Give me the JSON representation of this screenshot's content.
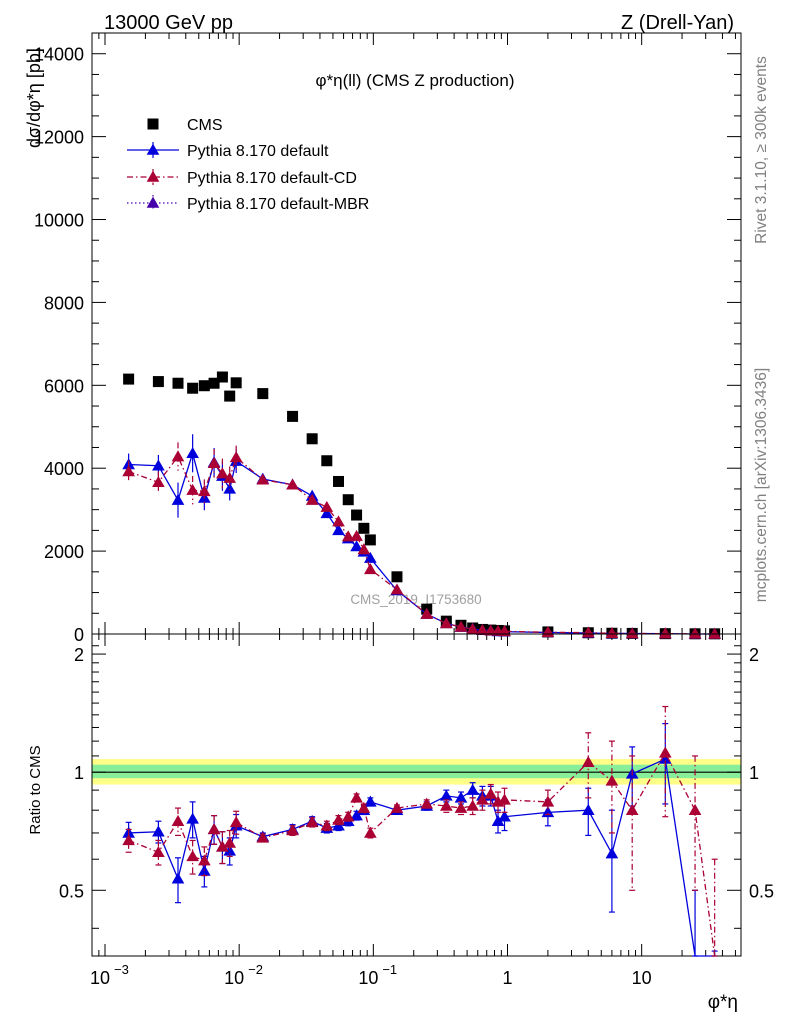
{
  "header": {
    "left": "13000 GeV pp",
    "right": "Z (Drell-Yan)"
  },
  "side_text": {
    "rivet": "Rivet 3.1.10, ≥ 300k events",
    "source": "mcplots.cern.ch [arXiv:1306.3436]"
  },
  "watermark": "CMS_2019_I1753680",
  "chart_data": {
    "type": "scatter",
    "title": "φ*η(ll) (CMS Z production)",
    "xscale": "log",
    "xlim": [
      0.0008,
      55
    ],
    "x_ticks": [
      {
        "value": 0.001,
        "base": "10",
        "exp": "−3"
      },
      {
        "value": 0.01,
        "base": "10",
        "exp": "−2"
      },
      {
        "value": 0.1,
        "base": "10",
        "exp": "−1"
      },
      {
        "value": 1,
        "base": "1",
        "exp": ""
      },
      {
        "value": 10,
        "base": "10",
        "exp": ""
      }
    ],
    "xlabel": "φ*η",
    "ylabel": "dσ/dφ*η [pb]",
    "ylim": [
      0,
      14500
    ],
    "y_ticks": [
      0,
      2000,
      4000,
      6000,
      8000,
      10000,
      12000,
      14000
    ],
    "ratio_label": "Ratio to CMS",
    "ratio_ylim": [
      0.34,
      2.25
    ],
    "ratio_ticks": [
      0.5,
      1,
      2
    ],
    "legend_position": "top-left",
    "x": [
      0.0015,
      0.0025,
      0.0035,
      0.0045,
      0.0055,
      0.0065,
      0.0075,
      0.0085,
      0.0095,
      0.015,
      0.025,
      0.035,
      0.045,
      0.055,
      0.065,
      0.075,
      0.085,
      0.095,
      0.15,
      0.25,
      0.35,
      0.45,
      0.55,
      0.65,
      0.75,
      0.85,
      0.95,
      2,
      4,
      6,
      8.5,
      15,
      25,
      35
    ],
    "series": [
      {
        "name": "CMS",
        "color": "#000000",
        "marker": "square",
        "values": [
          6150,
          6090,
          6050,
          5930,
          5990,
          6050,
          6200,
          5740,
          6060,
          5800,
          5250,
          4710,
          4180,
          3680,
          3240,
          2870,
          2550,
          2270,
          1380,
          600,
          310,
          210,
          145,
          110,
          95,
          85,
          75,
          50,
          30,
          18,
          14,
          8,
          5,
          4
        ],
        "errors": [
          0,
          0,
          0,
          0,
          0,
          0,
          0,
          0,
          0,
          0,
          0,
          0,
          0,
          0,
          0,
          0,
          0,
          0,
          0,
          0,
          0,
          0,
          0,
          0,
          0,
          0,
          0,
          0,
          0,
          0,
          0,
          0,
          0,
          0
        ]
      },
      {
        "name": "Pythia 8.170 default",
        "color": "#0000dd",
        "marker": "triangle",
        "line": "solid",
        "values": [
          4090,
          4060,
          3230,
          4360,
          3280,
          4140,
          3810,
          3500,
          4170,
          3740,
          3600,
          3330,
          2910,
          2500,
          2300,
          2110,
          1980,
          1830,
          1050,
          480,
          255,
          165,
          125,
          90,
          80,
          60,
          56,
          38,
          23,
          11,
          13,
          8.5,
          0.9,
          0.1
        ],
        "ratio": [
          0.7,
          0.705,
          0.535,
          0.76,
          0.56,
          0.715,
          0.645,
          0.63,
          0.73,
          0.685,
          0.715,
          0.75,
          0.72,
          0.73,
          0.75,
          0.775,
          0.8,
          0.84,
          0.8,
          0.82,
          0.87,
          0.86,
          0.9,
          0.87,
          0.87,
          0.75,
          0.77,
          0.79,
          0.8,
          0.62,
          0.99,
          1.08,
          0.3,
          0.15
        ],
        "ratio_err": [
          0.045,
          0.045,
          0.07,
          0.08,
          0.05,
          0.06,
          0.06,
          0.05,
          0.05,
          0.015,
          0.02,
          0.02,
          0.02,
          0.02,
          0.02,
          0.02,
          0.02,
          0.02,
          0.015,
          0.02,
          0.03,
          0.03,
          0.04,
          0.05,
          0.05,
          0.05,
          0.06,
          0.06,
          0.11,
          0.18,
          0.17,
          0.25,
          0.2,
          0.2
        ]
      },
      {
        "name": "Pythia 8.170 default-CD",
        "color": "#aa0033",
        "marker": "triangle",
        "line": "dash-dot",
        "values": [
          3920,
          3660,
          4280,
          3470,
          3440,
          4120,
          3870,
          3760,
          4260,
          3720,
          3600,
          3230,
          3060,
          2710,
          2350,
          2360,
          2040,
          1560,
          1070,
          480,
          252,
          170,
          118,
          92,
          80,
          72,
          64,
          42,
          32,
          17,
          11,
          9,
          4,
          0.1
        ],
        "ratio": [
          0.67,
          0.625,
          0.75,
          0.61,
          0.595,
          0.715,
          0.645,
          0.66,
          0.745,
          0.68,
          0.71,
          0.745,
          0.73,
          0.755,
          0.77,
          0.86,
          0.81,
          0.7,
          0.81,
          0.83,
          0.82,
          0.81,
          0.82,
          0.85,
          0.88,
          0.84,
          0.85,
          0.84,
          1.06,
          0.95,
          0.8,
          1.12,
          0.8,
          0.3
        ],
        "ratio_err": [
          0.045,
          0.045,
          0.06,
          0.06,
          0.05,
          0.06,
          0.06,
          0.05,
          0.05,
          0.015,
          0.02,
          0.02,
          0.02,
          0.02,
          0.02,
          0.02,
          0.02,
          0.02,
          0.015,
          0.02,
          0.03,
          0.03,
          0.04,
          0.05,
          0.05,
          0.05,
          0.06,
          0.06,
          0.2,
          0.25,
          0.3,
          0.35,
          0.3,
          0.3
        ]
      },
      {
        "name": "Pythia 8.170 default-MBR",
        "color": "#4400aa",
        "marker": "triangle",
        "line": "dotted"
      }
    ],
    "band_colors": {
      "yellow": "#ffff88",
      "green": "#88ee99",
      "line": "#000000"
    }
  }
}
